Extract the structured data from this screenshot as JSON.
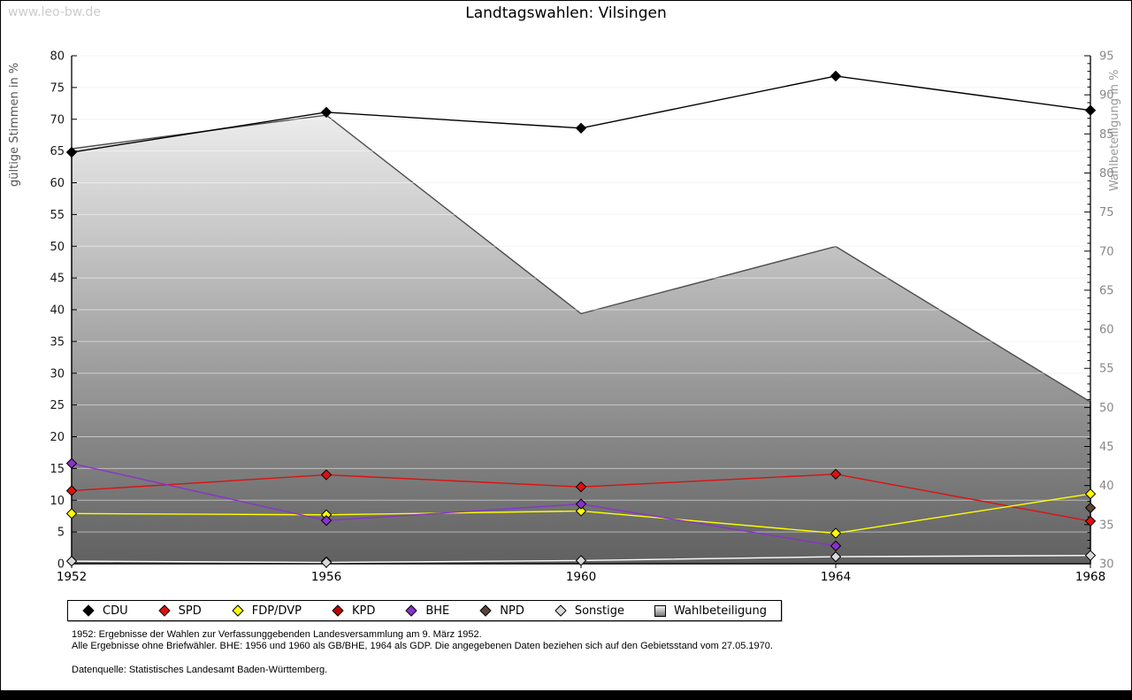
{
  "watermark": "www.leo-bw.de",
  "title": "Landtagswahlen: Vilsingen",
  "left_axis": {
    "label": "gültige Stimmen in %",
    "min": 0,
    "max": 80,
    "ticks": [
      0,
      5,
      10,
      15,
      20,
      25,
      30,
      35,
      40,
      45,
      50,
      55,
      60,
      65,
      70,
      75,
      80
    ]
  },
  "right_axis": {
    "label": "Wahlbeteiligung in %",
    "min": 30,
    "max": 95,
    "minor_step": 1,
    "ticks": [
      30,
      35,
      40,
      45,
      50,
      55,
      60,
      65,
      70,
      75,
      80,
      85,
      90,
      95
    ]
  },
  "x_axis": {
    "tick_labels": [
      "1952",
      "1956",
      "1960",
      "1964",
      "1968"
    ]
  },
  "chart_data": {
    "type": "line",
    "x": [
      1952,
      1956,
      1960,
      1964,
      1968
    ],
    "title": "Landtagswahlen: Vilsingen",
    "ylabel_left": "gültige Stimmen in %",
    "ylabel_right": "Wahlbeteiligung in %",
    "ylim_left": [
      0,
      80
    ],
    "ylim_right": [
      30,
      95
    ],
    "grid": true,
    "legend_position": "bottom",
    "series": [
      {
        "name": "CDU",
        "color": "#000000",
        "line": "#000000",
        "axis": "left",
        "values": [
          64.8,
          71.1,
          68.6,
          76.8,
          71.4
        ]
      },
      {
        "name": "SPD",
        "color": "#dd1111",
        "line": "#dd1111",
        "axis": "left",
        "values": [
          11.5,
          14.0,
          12.1,
          14.1,
          6.7
        ]
      },
      {
        "name": "FDP/DVP",
        "color": "#ffff00",
        "line": "#ffff00",
        "axis": "left",
        "values": [
          7.9,
          7.7,
          8.3,
          4.8,
          11.0
        ]
      },
      {
        "name": "KPD",
        "color": "#c00000",
        "line": "#c00000",
        "axis": "left",
        "values": [
          null,
          0.3,
          null,
          null,
          null
        ]
      },
      {
        "name": "BHE",
        "color": "#8833cc",
        "line": "#8833cc",
        "axis": "left",
        "values": [
          15.8,
          6.8,
          9.4,
          2.8,
          null
        ]
      },
      {
        "name": "NPD",
        "color": "#594435",
        "line": "#594435",
        "axis": "left",
        "values": [
          null,
          null,
          null,
          null,
          8.8
        ]
      },
      {
        "name": "Sonstige",
        "color": "#d9d9d9",
        "line": "#ffffff",
        "axis": "left",
        "values": [
          0.4,
          0.2,
          0.5,
          1.1,
          1.3
        ]
      },
      {
        "name": "Wahlbeteiligung",
        "color": "#aaaaaa",
        "type": "area",
        "axis": "right",
        "values": [
          83.1,
          87.4,
          62.0,
          70.6,
          50.7
        ]
      }
    ]
  },
  "footnotes": {
    "line1": "1952: Ergebnisse der Wahlen zur Verfassunggebenden Landesversammlung am 9. März 1952.",
    "line2": "Alle Ergebnisse ohne Briefwähler. BHE: 1956 und 1960 als GB/BHE, 1964 als GDP. Die angegebenen Daten beziehen sich auf den Gebietsstand vom 27.05.1970.",
    "line3": "Datenquelle: Statistisches Landesamt Baden-Württemberg."
  }
}
